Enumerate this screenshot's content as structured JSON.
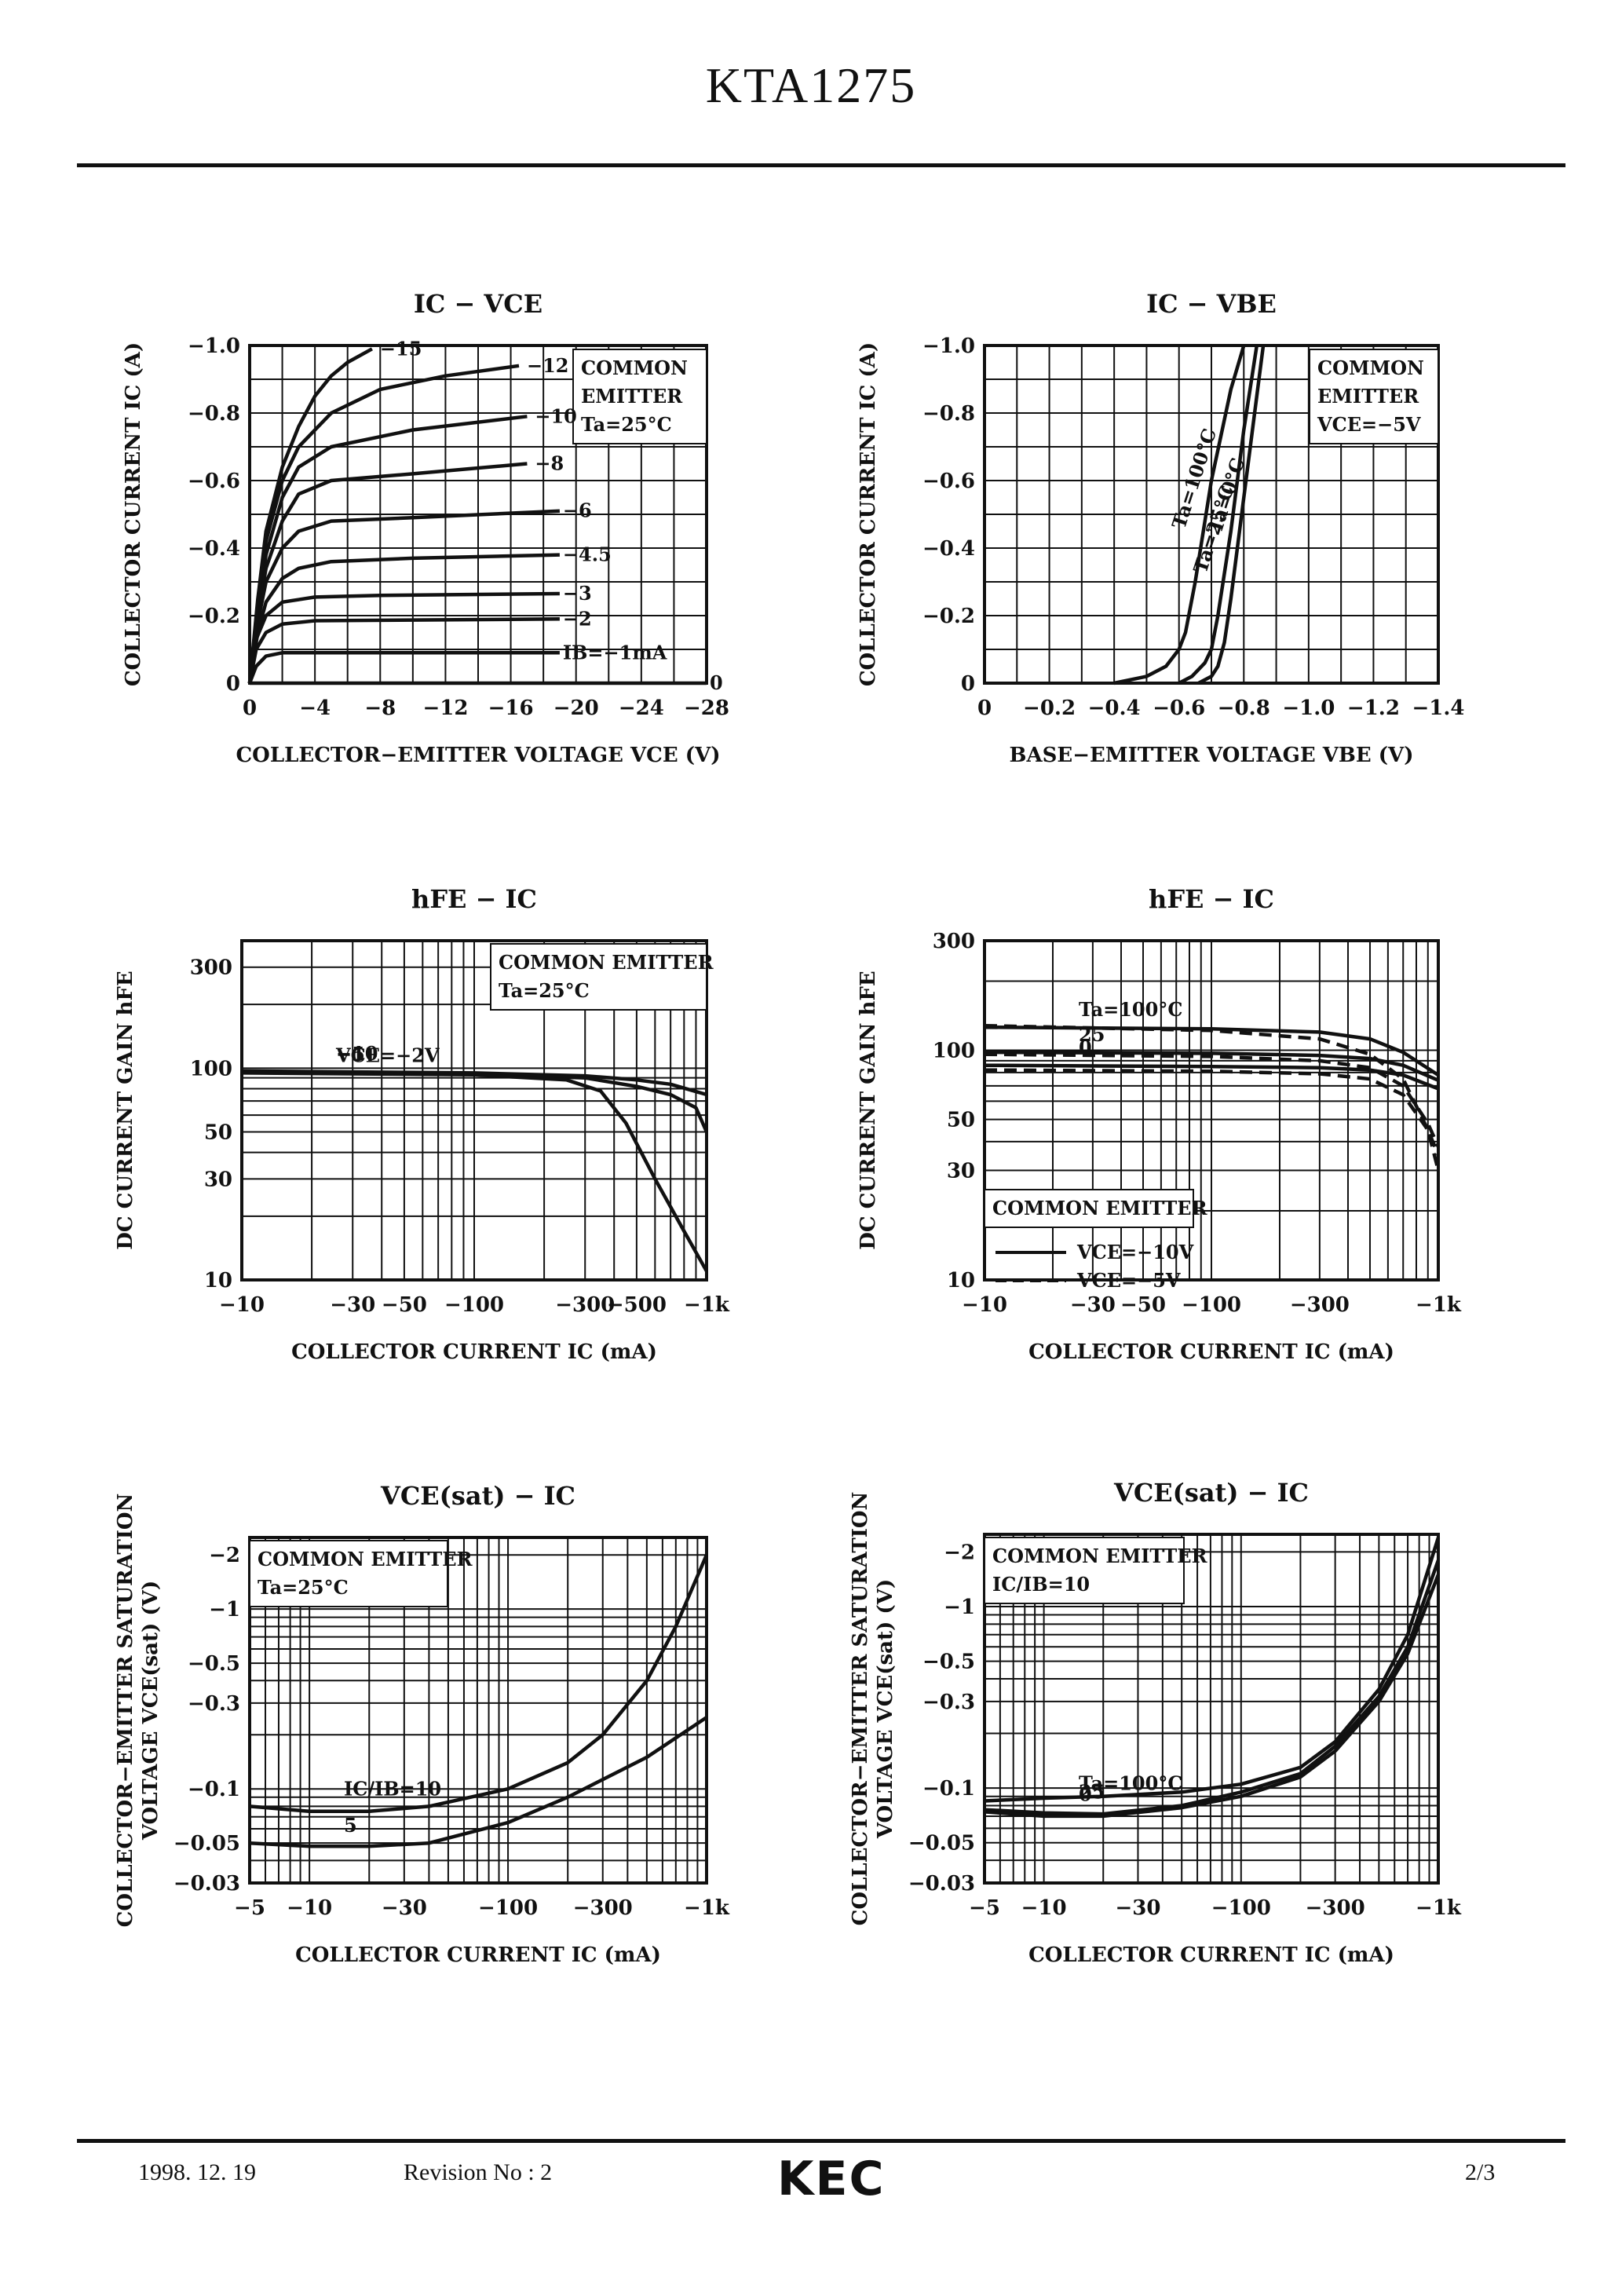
{
  "document": {
    "part_number": "KTA1275",
    "footer": {
      "date": "1998. 12. 19",
      "revision": "Revision No : 2",
      "logo": "KEC",
      "page": "2/3"
    }
  },
  "chart_data": [
    {
      "id": "ic-vce",
      "type": "line",
      "title": "IC − VCE",
      "xlabel": "COLLECTOR−EMITTER VOLTAGE VCE (V)",
      "ylabel": "COLLECTOR CURRENT IC (A)",
      "xscale": "linear",
      "yscale": "linear",
      "xlim": [
        0,
        -28
      ],
      "ylim": [
        0,
        -1.0
      ],
      "xticks": [
        0,
        -4,
        -8,
        -12,
        -16,
        -20,
        -24,
        -28
      ],
      "xtick_labels": [
        "0",
        "−4",
        "−8",
        "−12",
        "−16",
        "−20",
        "−24",
        "−28"
      ],
      "yticks": [
        0,
        -0.2,
        -0.4,
        -0.6,
        -0.8,
        -1.0
      ],
      "ytick_labels": [
        "0",
        "−0.2",
        "−0.4",
        "−0.6",
        "−0.8",
        "−1.0"
      ],
      "annotation": [
        "COMMON",
        "EMITTER",
        "Ta=25°C"
      ],
      "series": [
        {
          "name": "IB=0",
          "label": "0",
          "x": [
            0,
            -28
          ],
          "y": [
            0,
            0
          ]
        },
        {
          "name": "IB=-1mA",
          "label": "IB=−1mA",
          "x": [
            0,
            -0.4,
            -1,
            -2,
            -4,
            -19
          ],
          "y": [
            0,
            -0.05,
            -0.08,
            -0.09,
            -0.09,
            -0.09
          ]
        },
        {
          "name": "IB=-2mA",
          "label": "−2",
          "x": [
            0,
            -0.4,
            -1,
            -2,
            -4,
            -19
          ],
          "y": [
            0,
            -0.1,
            -0.15,
            -0.175,
            -0.185,
            -0.19
          ]
        },
        {
          "name": "IB=-3mA",
          "label": "−3",
          "x": [
            0,
            -0.4,
            -1,
            -2,
            -4,
            -8,
            -19
          ],
          "y": [
            0,
            -0.13,
            -0.2,
            -0.24,
            -0.255,
            -0.26,
            -0.265
          ]
        },
        {
          "name": "IB=-4.5mA",
          "label": "−4.5",
          "x": [
            0,
            -0.5,
            -1,
            -2,
            -3,
            -5,
            -10,
            -19
          ],
          "y": [
            0,
            -0.15,
            -0.24,
            -0.31,
            -0.34,
            -0.36,
            -0.37,
            -0.38
          ]
        },
        {
          "name": "IB=-6mA",
          "label": "−6",
          "x": [
            0,
            -0.5,
            -1,
            -2,
            -3,
            -5,
            -10,
            -19
          ],
          "y": [
            0,
            -0.18,
            -0.3,
            -0.4,
            -0.45,
            -0.48,
            -0.49,
            -0.51
          ]
        },
        {
          "name": "IB=-8mA",
          "label": "−8",
          "x": [
            0,
            -0.5,
            -1,
            -2,
            -3,
            -5,
            -10,
            -17
          ],
          "y": [
            0,
            -0.2,
            -0.34,
            -0.48,
            -0.56,
            -0.6,
            -0.62,
            -0.65
          ]
        },
        {
          "name": "IB=-10mA",
          "label": "−10",
          "x": [
            0,
            -0.5,
            -1,
            -2,
            -3,
            -5,
            -10,
            -17
          ],
          "y": [
            0,
            -0.22,
            -0.38,
            -0.55,
            -0.64,
            -0.7,
            -0.75,
            -0.79
          ]
        },
        {
          "name": "IB=-12mA",
          "label": "−12",
          "x": [
            0,
            -0.5,
            -1,
            -2,
            -3,
            -5,
            -8,
            -12,
            -16.5
          ],
          "y": [
            0,
            -0.24,
            -0.42,
            -0.6,
            -0.7,
            -0.8,
            -0.87,
            -0.91,
            -0.94
          ]
        },
        {
          "name": "IB=-15mA",
          "label": "−15",
          "x": [
            0,
            -0.5,
            -1,
            -2,
            -3,
            -4,
            -5,
            -6,
            -7.5
          ],
          "y": [
            0,
            -0.25,
            -0.45,
            -0.64,
            -0.76,
            -0.85,
            -0.91,
            -0.95,
            -0.99
          ]
        }
      ]
    },
    {
      "id": "ic-vbe",
      "type": "line",
      "title": "IC − VBE",
      "xlabel": "BASE−EMITTER VOLTAGE VBE (V)",
      "ylabel": "COLLECTOR CURRENT IC (A)",
      "xscale": "linear",
      "yscale": "linear",
      "xlim": [
        0,
        -1.4
      ],
      "ylim": [
        0,
        -1.0
      ],
      "xticks": [
        0,
        -0.2,
        -0.4,
        -0.6,
        -0.8,
        -1.0,
        -1.2,
        -1.4
      ],
      "xtick_labels": [
        "0",
        "−0.2",
        "−0.4",
        "−0.6",
        "−0.8",
        "−1.0",
        "−1.2",
        "−1.4"
      ],
      "yticks": [
        0,
        -0.2,
        -0.4,
        -0.6,
        -0.8,
        -1.0
      ],
      "ytick_labels": [
        "0",
        "−0.2",
        "−0.4",
        "−0.6",
        "−0.8",
        "−1.0"
      ],
      "annotation": [
        "COMMON",
        "EMITTER",
        "VCE=−5V"
      ],
      "series": [
        {
          "name": "Ta=100°C",
          "label": "Ta=100°C",
          "x": [
            -0.4,
            -0.5,
            -0.56,
            -0.6,
            -0.62,
            -0.65,
            -0.7,
            -0.76,
            -0.8
          ],
          "y": [
            0,
            -0.02,
            -0.05,
            -0.1,
            -0.15,
            -0.3,
            -0.6,
            -0.87,
            -1.0
          ]
        },
        {
          "name": "Ta=25°C",
          "label": "Ta=25°C",
          "x": [
            -0.6,
            -0.64,
            -0.68,
            -0.7,
            -0.72,
            -0.76,
            -0.8,
            -0.84
          ],
          "y": [
            0,
            -0.02,
            -0.06,
            -0.1,
            -0.2,
            -0.45,
            -0.75,
            -1.0
          ]
        },
        {
          "name": "Ta=0°C",
          "label": "Ta=0°C",
          "x": [
            -0.66,
            -0.7,
            -0.72,
            -0.74,
            -0.76,
            -0.8,
            -0.84,
            -0.86
          ],
          "y": [
            0,
            -0.02,
            -0.05,
            -0.12,
            -0.25,
            -0.55,
            -0.85,
            -1.0
          ]
        }
      ]
    },
    {
      "id": "hfe-ic-1",
      "type": "line",
      "title": "hFE − IC",
      "xlabel": "COLLECTOR CURRENT IC (mA)",
      "ylabel": "DC CURRENT GAIN hFE",
      "xscale": "log",
      "yscale": "log",
      "xlim": [
        10,
        1000
      ],
      "ylim": [
        10,
        400
      ],
      "xticks": [
        10,
        30,
        50,
        100,
        300,
        500,
        1000
      ],
      "xtick_labels": [
        "−10",
        "−30",
        "−50",
        "−100",
        "−300",
        "−500",
        "−1k"
      ],
      "yticks": [
        10,
        30,
        50,
        100,
        300
      ],
      "ytick_labels": [
        "10",
        "30",
        "50",
        "100",
        "300"
      ],
      "annotation": [
        "COMMON EMITTER",
        "Ta=25°C"
      ],
      "series": [
        {
          "name": "VCE=-10V",
          "label": "−10",
          "x": [
            10,
            100,
            300,
            500,
            700,
            1000
          ],
          "y": [
            97,
            95,
            92,
            88,
            84,
            75
          ]
        },
        {
          "name": "VCE=-5V",
          "label": "−5",
          "x": [
            10,
            100,
            300,
            500,
            700,
            900,
            1000
          ],
          "y": [
            96,
            94,
            90,
            82,
            75,
            65,
            50
          ]
        },
        {
          "name": "VCE=-2V",
          "label": "VCE=−2V",
          "x": [
            10,
            100,
            250,
            350,
            450,
            600,
            800,
            1000
          ],
          "y": [
            95,
            93,
            88,
            78,
            55,
            30,
            17,
            11
          ]
        }
      ]
    },
    {
      "id": "hfe-ic-2",
      "type": "line",
      "title": "hFE − IC",
      "xlabel": "COLLECTOR CURRENT IC (mA)",
      "ylabel": "DC CURRENT GAIN hFE",
      "xscale": "log",
      "yscale": "log",
      "xlim": [
        10,
        1000
      ],
      "ylim": [
        10,
        300
      ],
      "xticks": [
        10,
        30,
        50,
        100,
        300,
        1000
      ],
      "xtick_labels": [
        "−10",
        "−30",
        "−50",
        "−100",
        "−300",
        "−1k"
      ],
      "yticks": [
        10,
        30,
        50,
        100,
        300
      ],
      "ytick_labels": [
        "10",
        "30",
        "50",
        "100",
        "300"
      ],
      "legend": [
        {
          "label": "VCE=−10V",
          "dash": "solid"
        },
        {
          "label": "VCE=−5V",
          "dash": "dashed"
        }
      ],
      "annotation": [
        "COMMON EMITTER"
      ],
      "series": [
        {
          "name": "Ta=100°C VCE=-10V",
          "label": "Ta=100°C",
          "dash": "solid",
          "x": [
            10,
            100,
            300,
            500,
            700,
            1000
          ],
          "y": [
            126,
            124,
            120,
            112,
            98,
            78
          ]
        },
        {
          "name": "Ta=100°C VCE=-5V",
          "dash": "dashed",
          "x": [
            10,
            100,
            300,
            500,
            700,
            900,
            1000
          ],
          "y": [
            128,
            122,
            112,
            96,
            75,
            45,
            30
          ]
        },
        {
          "name": "Ta=25°C VCE=-10V",
          "label": "25",
          "dash": "solid",
          "x": [
            10,
            100,
            300,
            500,
            700,
            1000
          ],
          "y": [
            98,
            97,
            95,
            92,
            86,
            74
          ]
        },
        {
          "name": "Ta=25°C VCE=-5V",
          "dash": "dashed",
          "x": [
            10,
            100,
            300,
            500,
            700,
            900,
            1000
          ],
          "y": [
            96,
            94,
            90,
            84,
            70,
            48,
            38
          ]
        },
        {
          "name": "Ta=0°C VCE=-10V",
          "label": "0",
          "dash": "solid",
          "x": [
            10,
            100,
            300,
            500,
            700,
            1000
          ],
          "y": [
            86,
            85,
            84,
            82,
            78,
            68
          ]
        },
        {
          "name": "Ta=0°C VCE=-5V",
          "dash": "dashed",
          "x": [
            10,
            100,
            300,
            500,
            700,
            900,
            1000
          ],
          "y": [
            82,
            81,
            79,
            75,
            64,
            45,
            35
          ]
        }
      ]
    },
    {
      "id": "vce-sat-1",
      "type": "line",
      "title": "VCE(sat) − IC",
      "xlabel": "COLLECTOR CURRENT IC (mA)",
      "ylabel": [
        "COLLECTOR−EMITTER SATURATION",
        "VOLTAGE VCE(sat) (V)"
      ],
      "xscale": "log",
      "yscale": "log",
      "xlim": [
        5,
        1000
      ],
      "ylim": [
        0.03,
        2.5
      ],
      "xticks": [
        5,
        10,
        30,
        100,
        300,
        1000
      ],
      "xtick_labels": [
        "−5",
        "−10",
        "−30",
        "−100",
        "−300",
        "−1k"
      ],
      "yticks": [
        0.03,
        0.05,
        0.1,
        0.3,
        0.5,
        1,
        2
      ],
      "ytick_labels": [
        "−0.03",
        "−0.05",
        "−0.1",
        "−0.3",
        "−0.5",
        "−1",
        "−2"
      ],
      "annotation": [
        "COMMON EMITTER",
        "Ta=25°C"
      ],
      "series": [
        {
          "name": "IC/IB=10",
          "label": "IC/IB=10",
          "x": [
            5,
            10,
            20,
            40,
            100,
            200,
            300,
            500,
            700,
            1000
          ],
          "y": [
            0.08,
            0.075,
            0.075,
            0.08,
            0.1,
            0.14,
            0.2,
            0.4,
            0.8,
            2.0
          ]
        },
        {
          "name": "IC/IB=5",
          "label": "5",
          "x": [
            5,
            10,
            20,
            40,
            100,
            200,
            500,
            1000
          ],
          "y": [
            0.05,
            0.048,
            0.048,
            0.05,
            0.065,
            0.09,
            0.15,
            0.25
          ]
        }
      ]
    },
    {
      "id": "vce-sat-2",
      "type": "line",
      "title": "VCE(sat) − IC",
      "xlabel": "COLLECTOR CURRENT IC (mA)",
      "ylabel": [
        "COLLECTOR−EMITTER SATURATION",
        "VOLTAGE VCE(sat) (V)"
      ],
      "xscale": "log",
      "yscale": "log",
      "xlim": [
        5,
        1000
      ],
      "ylim": [
        0.03,
        2.5
      ],
      "xticks": [
        5,
        10,
        30,
        100,
        300,
        1000
      ],
      "xtick_labels": [
        "−5",
        "−10",
        "−30",
        "−100",
        "−300",
        "−1k"
      ],
      "yticks": [
        0.03,
        0.05,
        0.1,
        0.3,
        0.5,
        1,
        2
      ],
      "ytick_labels": [
        "−0.03",
        "−0.05",
        "−0.1",
        "−0.3",
        "−0.5",
        "−1",
        "−2"
      ],
      "annotation": [
        "COMMON EMITTER",
        "IC/IB=10"
      ],
      "series": [
        {
          "name": "Ta=100°C",
          "label": "Ta=100°C",
          "x": [
            5,
            10,
            20,
            50,
            100,
            200,
            300,
            500,
            700,
            1000
          ],
          "y": [
            0.085,
            0.088,
            0.09,
            0.095,
            0.105,
            0.13,
            0.18,
            0.35,
            0.7,
            2.4
          ]
        },
        {
          "name": "Ta=25°C",
          "label": "25",
          "x": [
            5,
            10,
            20,
            50,
            100,
            200,
            300,
            500,
            700,
            1000
          ],
          "y": [
            0.076,
            0.073,
            0.072,
            0.08,
            0.095,
            0.12,
            0.17,
            0.32,
            0.6,
            1.8
          ]
        },
        {
          "name": "Ta=0°C",
          "label": "0",
          "x": [
            5,
            10,
            20,
            50,
            100,
            200,
            300,
            500,
            700,
            1000
          ],
          "y": [
            0.074,
            0.07,
            0.07,
            0.078,
            0.09,
            0.115,
            0.16,
            0.3,
            0.55,
            1.5
          ]
        }
      ]
    }
  ]
}
